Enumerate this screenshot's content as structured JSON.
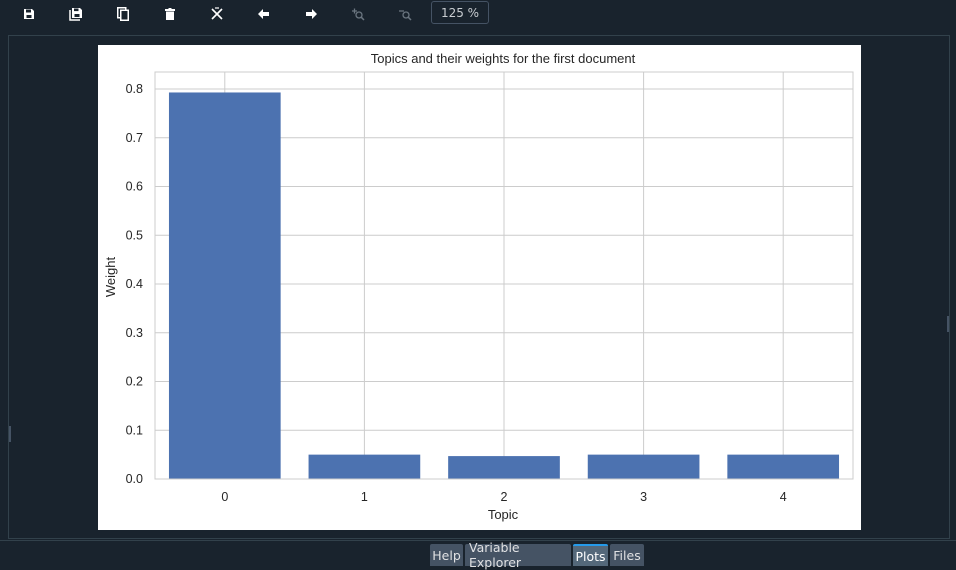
{
  "toolbar": {
    "buttons": [
      {
        "name": "save-plot-button",
        "icon": "save-icon"
      },
      {
        "name": "save-all-plots-button",
        "icon": "save-all-icon"
      },
      {
        "name": "copy-plot-button",
        "icon": "copy-icon"
      },
      {
        "name": "remove-plot-button",
        "icon": "trash-icon"
      },
      {
        "name": "remove-all-plots-button",
        "icon": "close-all-icon"
      },
      {
        "name": "previous-plot-button",
        "icon": "arrow-left-icon"
      },
      {
        "name": "next-plot-button",
        "icon": "arrow-right-icon"
      },
      {
        "name": "zoom-in-button",
        "icon": "zoom-in-icon"
      },
      {
        "name": "zoom-out-button",
        "icon": "zoom-out-icon"
      }
    ],
    "zoom_level": "125 %"
  },
  "chart_data": {
    "type": "bar",
    "title": "Topics and their weights for the first document",
    "xlabel": "Topic",
    "ylabel": "Weight",
    "categories": [
      "0",
      "1",
      "2",
      "3",
      "4"
    ],
    "values": [
      0.793,
      0.05,
      0.047,
      0.05,
      0.05
    ],
    "ylim": [
      0,
      0.835
    ],
    "yticks": [
      "0.0",
      "0.1",
      "0.2",
      "0.3",
      "0.4",
      "0.5",
      "0.6",
      "0.7",
      "0.8"
    ],
    "grid": true,
    "bar_color": "#4c72b0",
    "grid_color": "#cccccc"
  },
  "tabs": [
    {
      "label": "Help",
      "active": false
    },
    {
      "label": "Variable Explorer",
      "active": false
    },
    {
      "label": "Plots",
      "active": true
    },
    {
      "label": "Files",
      "active": false
    }
  ],
  "colors": {
    "background": "#19232d",
    "accent": "#259ae9",
    "tab": "#455364"
  }
}
